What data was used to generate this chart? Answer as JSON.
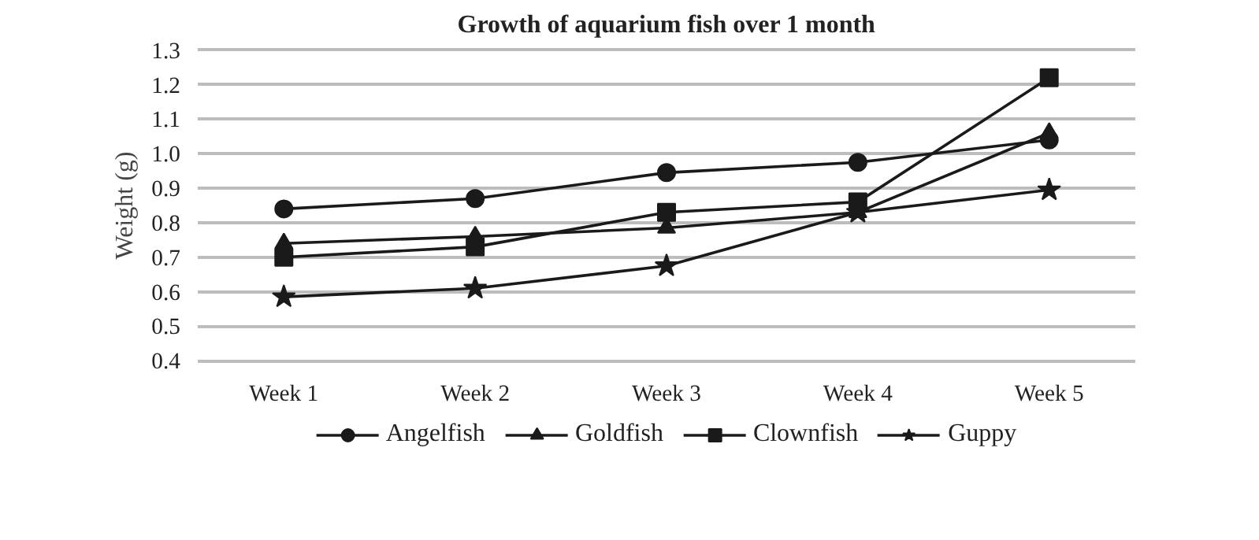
{
  "chart_data": {
    "type": "line",
    "title": "Growth of aquarium fish over 1 month",
    "ylabel": "Weight (g)",
    "categories": [
      "Week 1",
      "Week 2",
      "Week 3",
      "Week 4",
      "Week 5"
    ],
    "ylim": [
      0.4,
      1.3
    ],
    "yticks": [
      {
        "value": 0.4,
        "label": "0.4"
      },
      {
        "value": 0.5,
        "label": "0.5"
      },
      {
        "value": 0.6,
        "label": "0.6"
      },
      {
        "value": 0.7,
        "label": "0.7"
      },
      {
        "value": 0.8,
        "label": "0.8"
      },
      {
        "value": 0.9,
        "label": "0.9"
      },
      {
        "value": 1.0,
        "label": "1.0"
      },
      {
        "value": 1.1,
        "label": "1.1"
      },
      {
        "value": 1.2,
        "label": "1.2"
      },
      {
        "value": 1.3,
        "label": "1.3"
      }
    ],
    "grid": "y",
    "legend": "bottom",
    "line_style": "solid",
    "series": [
      {
        "name": "Angelfish",
        "color": "#1a1a1a",
        "marker": "circle",
        "values": [
          0.84,
          0.87,
          0.945,
          0.975,
          1.04
        ]
      },
      {
        "name": "Goldfish",
        "color": "#1a1a1a",
        "marker": "triangle",
        "values": [
          0.74,
          0.76,
          0.785,
          0.83,
          1.06
        ]
      },
      {
        "name": "Clownfish",
        "color": "#1a1a1a",
        "marker": "square",
        "values": [
          0.7,
          0.73,
          0.83,
          0.86,
          1.22
        ]
      },
      {
        "name": "Guppy",
        "color": "#1a1a1a",
        "marker": "star",
        "values": [
          0.585,
          0.61,
          0.675,
          0.83,
          0.895
        ]
      }
    ]
  }
}
